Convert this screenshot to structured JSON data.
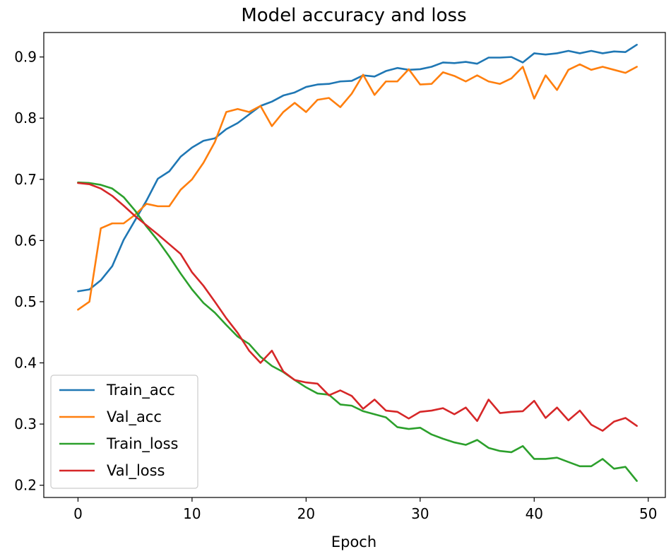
{
  "chart_data": {
    "type": "line",
    "title": "Model accuracy and loss",
    "xlabel": "Epoch",
    "ylabel": "",
    "xlim": [
      -3.0,
      51.5
    ],
    "ylim": [
      0.18,
      0.94
    ],
    "xticks": [
      0,
      10,
      20,
      30,
      40,
      50
    ],
    "yticks": [
      0.2,
      0.3,
      0.4,
      0.5,
      0.6,
      0.7,
      0.8,
      0.9
    ],
    "grid": false,
    "legend": "lower-left",
    "series": [
      {
        "name": "Train_acc",
        "color": "#1f77b4",
        "values": [
          0.517,
          0.52,
          0.535,
          0.558,
          0.601,
          0.633,
          0.665,
          0.701,
          0.713,
          0.737,
          0.752,
          0.763,
          0.767,
          0.782,
          0.792,
          0.806,
          0.82,
          0.827,
          0.837,
          0.842,
          0.851,
          0.855,
          0.856,
          0.86,
          0.861,
          0.87,
          0.868,
          0.877,
          0.882,
          0.879,
          0.88,
          0.884,
          0.891,
          0.89,
          0.892,
          0.889,
          0.899,
          0.899,
          0.9,
          0.891,
          0.906,
          0.904,
          0.906,
          0.91,
          0.906,
          0.91,
          0.906,
          0.909,
          0.908,
          0.92
        ]
      },
      {
        "name": "Val_acc",
        "color": "#ff7f0e",
        "values": [
          0.487,
          0.5,
          0.62,
          0.628,
          0.628,
          0.642,
          0.66,
          0.656,
          0.656,
          0.683,
          0.7,
          0.727,
          0.761,
          0.81,
          0.815,
          0.81,
          0.82,
          0.787,
          0.81,
          0.825,
          0.81,
          0.83,
          0.833,
          0.818,
          0.84,
          0.871,
          0.838,
          0.86,
          0.86,
          0.88,
          0.855,
          0.856,
          0.875,
          0.869,
          0.86,
          0.87,
          0.86,
          0.856,
          0.865,
          0.884,
          0.832,
          0.87,
          0.846,
          0.879,
          0.888,
          0.879,
          0.884,
          0.879,
          0.874,
          0.884
        ]
      },
      {
        "name": "Train_loss",
        "color": "#2ca02c",
        "values": [
          0.695,
          0.694,
          0.691,
          0.685,
          0.671,
          0.649,
          0.623,
          0.6,
          0.574,
          0.546,
          0.52,
          0.498,
          0.482,
          0.462,
          0.443,
          0.431,
          0.41,
          0.395,
          0.385,
          0.372,
          0.36,
          0.35,
          0.348,
          0.332,
          0.33,
          0.321,
          0.316,
          0.311,
          0.295,
          0.292,
          0.294,
          0.283,
          0.276,
          0.27,
          0.266,
          0.274,
          0.261,
          0.256,
          0.254,
          0.264,
          0.243,
          0.243,
          0.245,
          0.238,
          0.231,
          0.231,
          0.243,
          0.227,
          0.23,
          0.207
        ]
      },
      {
        "name": "Val_loss",
        "color": "#d62728",
        "values": [
          0.694,
          0.692,
          0.685,
          0.673,
          0.657,
          0.64,
          0.625,
          0.61,
          0.594,
          0.578,
          0.548,
          0.526,
          0.5,
          0.473,
          0.449,
          0.42,
          0.4,
          0.42,
          0.386,
          0.372,
          0.368,
          0.366,
          0.347,
          0.355,
          0.346,
          0.325,
          0.34,
          0.322,
          0.32,
          0.309,
          0.32,
          0.322,
          0.326,
          0.316,
          0.327,
          0.305,
          0.34,
          0.318,
          0.32,
          0.321,
          0.338,
          0.31,
          0.327,
          0.306,
          0.322,
          0.299,
          0.289,
          0.304,
          0.31,
          0.297
        ]
      }
    ]
  }
}
